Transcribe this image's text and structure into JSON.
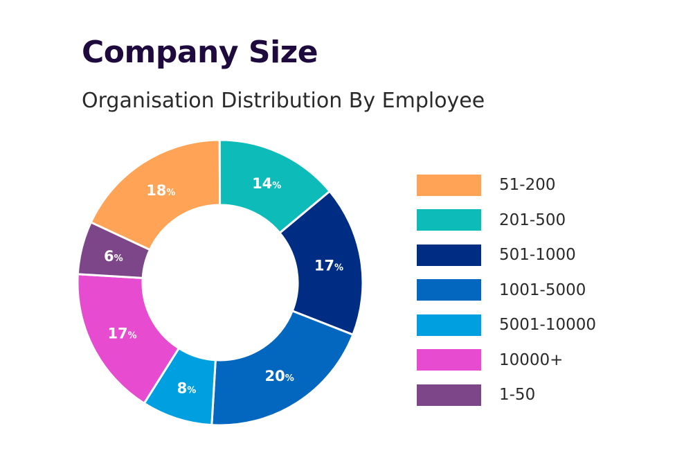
{
  "chart_data": {
    "type": "pie",
    "title": "Company Size",
    "subtitle": "Organisation Distribution By Employee",
    "donut": true,
    "legend_position": "right",
    "label_suffix": "%",
    "categories": [
      "51-200",
      "201-500",
      "501-1000",
      "1001-5000",
      "5001-10000",
      "10000+",
      "1-50"
    ],
    "values": [
      18,
      14,
      17,
      20,
      8,
      17,
      6
    ],
    "value_labels": [
      "18",
      "14",
      "17",
      "20",
      "8",
      "17",
      "6"
    ],
    "colors": [
      "#ffa357",
      "#0dbcb9",
      "#002d84",
      "#0467bf",
      "#00a0e0",
      "#e64bd0",
      "#7c4689"
    ]
  }
}
